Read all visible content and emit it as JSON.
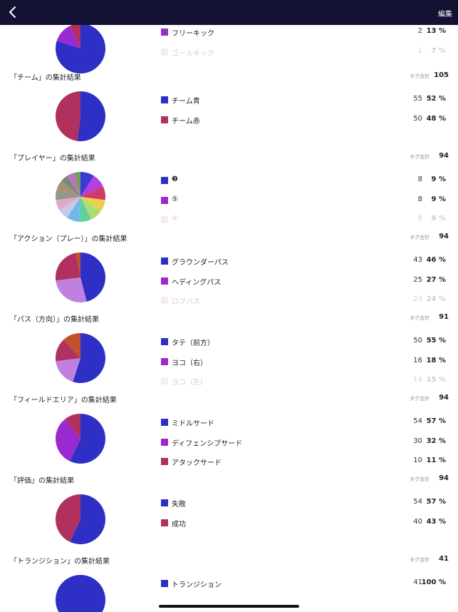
{
  "header": {
    "edit_label": "編集"
  },
  "total_label": "タグ合計",
  "sections": [
    {
      "title": "",
      "total": "",
      "slices": [
        {
          "value": 80,
          "color": "#2e2fc4"
        },
        {
          "value": 13,
          "color": "#9a2ad0"
        },
        {
          "value": 7,
          "color": "#b03060"
        }
      ],
      "rows": [
        {
          "label": "フリーキック",
          "count": "2",
          "pct": "13 %",
          "color": "#9a2ad0"
        },
        {
          "label": "ゴールキック",
          "count": "1",
          "pct": "7 %",
          "color": "#e8a8c8",
          "faded": true
        }
      ]
    },
    {
      "title": "「チーム」の集計結果",
      "total": "105",
      "slices": [
        {
          "value": 52,
          "color": "#2e2fc4"
        },
        {
          "value": 48,
          "color": "#b03060"
        }
      ],
      "rows": [
        {
          "label": "チーム青",
          "count": "55",
          "pct": "52 %",
          "color": "#2e2fc4"
        },
        {
          "label": "チーム赤",
          "count": "50",
          "pct": "48 %",
          "color": "#b03060"
        }
      ]
    },
    {
      "title": "「プレイヤー」の集計結果",
      "total": "94",
      "slices": [
        {
          "value": 9,
          "color": "#3a3ad8"
        },
        {
          "value": 9,
          "color": "#b040e0"
        },
        {
          "value": 9,
          "color": "#d03a6a"
        },
        {
          "value": 8,
          "color": "#e8d050"
        },
        {
          "value": 8,
          "color": "#a8e070"
        },
        {
          "value": 8,
          "color": "#60d0a0"
        },
        {
          "value": 8,
          "color": "#70b8e8"
        },
        {
          "value": 7,
          "color": "#c8c8e8"
        },
        {
          "value": 7,
          "color": "#e0a8c8"
        },
        {
          "value": 7,
          "color": "#909890"
        },
        {
          "value": 6,
          "color": "#a89070"
        },
        {
          "value": 5,
          "color": "#7a8a7a"
        },
        {
          "value": 5,
          "color": "#c070c0"
        },
        {
          "value": 4,
          "color": "#70a050"
        }
      ],
      "rows": [
        {
          "label": "❷",
          "count": "8",
          "pct": "9 %",
          "color": "#2e2fc4"
        },
        {
          "label": "⑤",
          "count": "8",
          "pct": "9 %",
          "color": "#9a2ad0"
        },
        {
          "label": "⑥",
          "count": "8",
          "pct": "9 %",
          "color": "#e8a8c8",
          "faded": true
        }
      ]
    },
    {
      "title": "「アクション（プレー）」の集計結果",
      "total": "94",
      "slices": [
        {
          "value": 46,
          "color": "#2e2fc4"
        },
        {
          "value": 27,
          "color": "#c080e0"
        },
        {
          "value": 24,
          "color": "#b03060"
        },
        {
          "value": 3,
          "color": "#c05030"
        }
      ],
      "rows": [
        {
          "label": "グラウンダーパス",
          "count": "43",
          "pct": "46 %",
          "color": "#2e2fc4"
        },
        {
          "label": "ヘディングパス",
          "count": "25",
          "pct": "27 %",
          "color": "#9a2ad0"
        },
        {
          "label": "ロブパス",
          "count": "23",
          "pct": "24 %",
          "color": "#e8a8c8",
          "faded": true
        }
      ]
    },
    {
      "title": "「パス（方向）」の集計結果",
      "total": "91",
      "slices": [
        {
          "value": 55,
          "color": "#2e2fc4"
        },
        {
          "value": 18,
          "color": "#c080e0"
        },
        {
          "value": 15,
          "color": "#b03060"
        },
        {
          "value": 12,
          "color": "#c05030"
        }
      ],
      "rows": [
        {
          "label": "タテ（前方）",
          "count": "50",
          "pct": "55 %",
          "color": "#2e2fc4"
        },
        {
          "label": "ヨコ（右）",
          "count": "16",
          "pct": "18 %",
          "color": "#9a2ad0"
        },
        {
          "label": "ヨコ（左）",
          "count": "14",
          "pct": "15 %",
          "color": "#e8a8c8",
          "faded": true
        }
      ]
    },
    {
      "title": "「フィールドエリア」の集計結果",
      "total": "94",
      "slices": [
        {
          "value": 57,
          "color": "#2e2fc4"
        },
        {
          "value": 32,
          "color": "#9a2ad0"
        },
        {
          "value": 11,
          "color": "#b03060"
        }
      ],
      "rows": [
        {
          "label": "ミドルサード",
          "count": "54",
          "pct": "57 %",
          "color": "#2e2fc4"
        },
        {
          "label": "ディフェンシブサード",
          "count": "30",
          "pct": "32 %",
          "color": "#9a2ad0"
        },
        {
          "label": "アタックサード",
          "count": "10",
          "pct": "11 %",
          "color": "#b03060"
        }
      ]
    },
    {
      "title": "「評価」の集計結果",
      "total": "94",
      "slices": [
        {
          "value": 57,
          "color": "#2e2fc4"
        },
        {
          "value": 43,
          "color": "#b03060"
        }
      ],
      "rows": [
        {
          "label": "失敗",
          "count": "54",
          "pct": "57 %",
          "color": "#2e2fc4"
        },
        {
          "label": "成功",
          "count": "40",
          "pct": "43 %",
          "color": "#b03060"
        }
      ]
    },
    {
      "title": "「トランジション」の集計結果",
      "total": "41",
      "slices": [
        {
          "value": 100,
          "color": "#2e2fc4"
        }
      ],
      "rows": [
        {
          "label": "トランジション",
          "count": "41",
          "pct": "100 %",
          "color": "#2e2fc4"
        }
      ]
    }
  ]
}
